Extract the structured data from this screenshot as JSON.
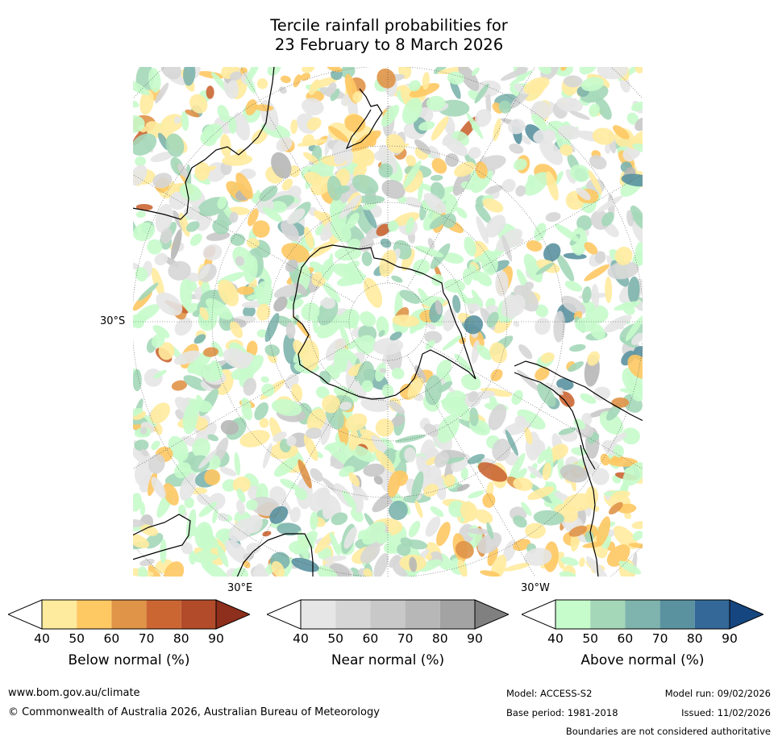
{
  "title_line1": "Tercile rainfall probabilities for",
  "title_line2": "23 February to 8 March 2026",
  "map": {
    "labels": {
      "lat": "30°S",
      "lon_left": "30°E",
      "lon_right": "30°W"
    }
  },
  "colorbars": [
    {
      "label": "Below normal (%)",
      "ticks": [
        "40",
        "50",
        "60",
        "70",
        "80",
        "90"
      ],
      "colors": [
        "#ffffff",
        "#ffeb9e",
        "#fec863",
        "#e09448",
        "#cb6633",
        "#b24b2a",
        "#8e2e1c"
      ]
    },
    {
      "label": "Near normal (%)",
      "ticks": [
        "40",
        "50",
        "60",
        "70",
        "80",
        "90"
      ],
      "colors": [
        "#ffffff",
        "#e6e6e6",
        "#d6d6d6",
        "#c8c8c8",
        "#b7b7b7",
        "#a3a3a3",
        "#808080"
      ]
    },
    {
      "label": "Above normal (%)",
      "ticks": [
        "40",
        "50",
        "60",
        "70",
        "80",
        "90"
      ],
      "colors": [
        "#ffffff",
        "#c6fbcb",
        "#a4d7b8",
        "#7eb4ad",
        "#5a92a0",
        "#336898",
        "#15467f"
      ]
    }
  ],
  "footer": {
    "website": "www.bom.gov.au/climate",
    "copyright": "© Commonwealth of Australia 2026, Australian Bureau of Meteorology",
    "model": "Model: ACCESS-S2",
    "model_run": "Model run: 09/02/2026",
    "base_period": "Base period: 1981-2018",
    "issued": "Issued: 11/02/2026",
    "disclaimer": "Boundaries are not considered authoritative"
  }
}
